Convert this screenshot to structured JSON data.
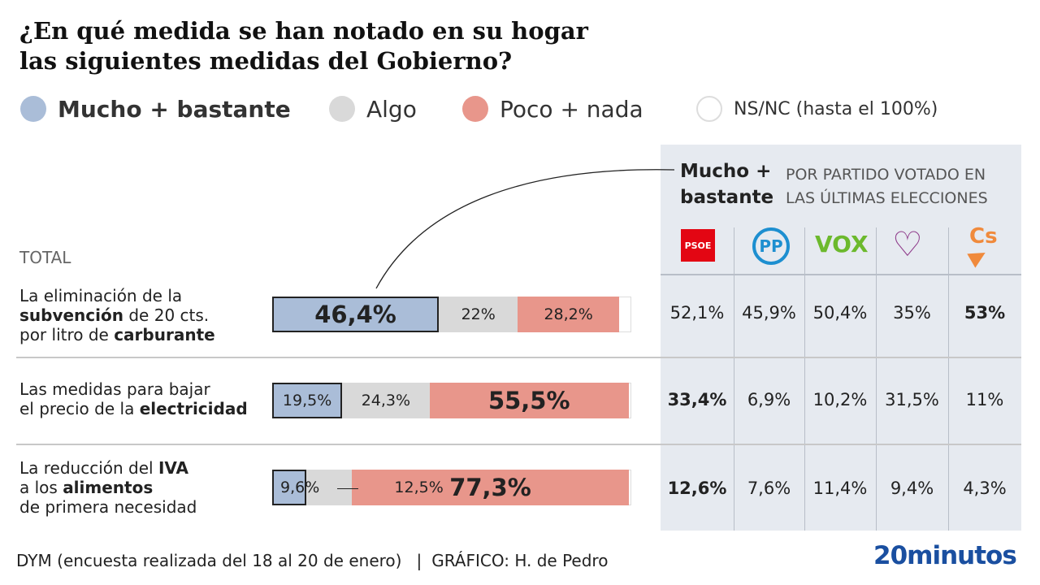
{
  "title": [
    "¿En qué medida se han notado en su hogar",
    "las siguientes medidas del Gobierno?"
  ],
  "legend": [
    {
      "label": "Mucho + bastante",
      "color": "#aabdd8"
    },
    {
      "label": "Algo",
      "color": "#d9d9d9"
    },
    {
      "label": "Poco + nada",
      "color": "#e8968b"
    },
    {
      "label": "NS/NC (hasta el 100%)",
      "color": "#ffffff"
    }
  ],
  "total_label": "TOTAL",
  "panel": {
    "title_line1": "Mucho +",
    "title_line2": "bastante",
    "subtitle_line1": "POR PARTIDO VOTADO EN",
    "subtitle_line2": "LAS ÚLTIMAS ELECCIONES"
  },
  "parties": [
    {
      "name": "PSOE",
      "color": "#e30613"
    },
    {
      "name": "PP",
      "color": "#1d8fd0"
    },
    {
      "name": "VOX",
      "color": "#6cb92d"
    },
    {
      "name": "Podemos",
      "color": "#8e3a8a"
    },
    {
      "name": "Cs",
      "color": "#f08a3c"
    }
  ],
  "rows": [
    {
      "label_parts": [
        [
          "La eliminación de la",
          ""
        ],
        [
          "subvención",
          " de 20 cts."
        ],
        [
          "por litro de ",
          "carburante"
        ]
      ],
      "label_html": "La eliminación de la<br><b>subvención</b> de 20 cts.<br>por litro de <b>carburante</b>"
    },
    {
      "label_html": "Las medidas para bajar<br>el precio de la <b>electricidad</b>"
    },
    {
      "label_html": "La reducción del <b>IVA</b><br>a los <b>alimentos</b><br>de primera necesidad"
    }
  ],
  "row_labels": [
    [
      "La eliminación de la",
      "subvención",
      "de 20 cts.",
      "por litro de",
      "carburante"
    ],
    [
      "Las medidas para bajar",
      "el precio de la",
      "electricidad"
    ],
    [
      "La reducción del",
      "IVA",
      "a los",
      "alimentos",
      "de primera necesidad"
    ]
  ],
  "chart_data": {
    "type": "bar",
    "stacked": true,
    "orientation": "horizontal",
    "categories": [
      "La eliminación de la subvención de 20 cts. por litro de carburante",
      "Las medidas para bajar el precio de la electricidad",
      "La reducción del IVA a los alimentos de primera necesidad"
    ],
    "series": [
      {
        "name": "Mucho + bastante",
        "values": [
          46.4,
          19.5,
          9.6
        ],
        "labels": [
          "46,4%",
          "19,5%",
          "9,6%"
        ]
      },
      {
        "name": "Algo",
        "values": [
          22,
          24.3,
          12.5
        ],
        "labels": [
          "22%",
          "24,3%",
          "12,5%"
        ]
      },
      {
        "name": "Poco + nada",
        "values": [
          28.2,
          55.5,
          77.3
        ],
        "labels": [
          "28,2%",
          "55,5%",
          "77,3%"
        ]
      }
    ],
    "xlim": [
      0,
      100
    ],
    "by_party": {
      "parties": [
        "PSOE",
        "PP",
        "VOX",
        "Podemos",
        "Cs"
      ],
      "values": [
        [
          52.1,
          45.9,
          50.4,
          35,
          53
        ],
        [
          33.4,
          6.9,
          10.2,
          31.5,
          11
        ],
        [
          12.6,
          7.6,
          11.4,
          9.4,
          4.3
        ]
      ],
      "labels": [
        [
          "52,1%",
          "45,9%",
          "50,4%",
          "35%",
          "53%"
        ],
        [
          "33,4%",
          "6,9%",
          "10,2%",
          "31,5%",
          "11%"
        ],
        [
          "12,6%",
          "7,6%",
          "11,4%",
          "9,4%",
          "4,3%"
        ]
      ],
      "bold": [
        [
          false,
          false,
          false,
          false,
          true
        ],
        [
          true,
          false,
          false,
          false,
          false
        ],
        [
          true,
          false,
          false,
          false,
          false
        ]
      ]
    }
  },
  "footer": {
    "source": "DYM (encuesta realizada del 18 al 20 de enero)",
    "separator": "|",
    "credit": "GRÁFICO: H. de Pedro",
    "logo": "20minutos"
  }
}
